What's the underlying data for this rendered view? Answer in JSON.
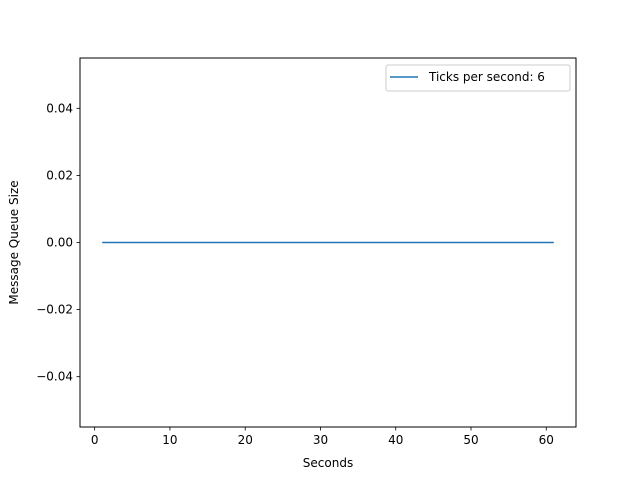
{
  "chart_data": {
    "type": "line",
    "xlabel": "Seconds",
    "ylabel": "Message Queue Size",
    "xlim": [
      -1.95,
      63.95
    ],
    "ylim": [
      -0.055,
      0.055
    ],
    "x_ticks": [
      0,
      10,
      20,
      30,
      40,
      50,
      60
    ],
    "x_tick_labels": [
      "0",
      "10",
      "20",
      "30",
      "40",
      "50",
      "60"
    ],
    "y_ticks": [
      -0.04,
      -0.02,
      0.0,
      0.02,
      0.04
    ],
    "y_tick_labels": [
      "−0.04",
      "−0.02",
      "0.00",
      "0.02",
      "0.04"
    ],
    "grid": false,
    "legend_position": "top-right",
    "series": [
      {
        "name": "Ticks per second: 6",
        "color": "#1f77b4",
        "x": [
          1,
          61
        ],
        "y": [
          0,
          0
        ]
      }
    ]
  }
}
